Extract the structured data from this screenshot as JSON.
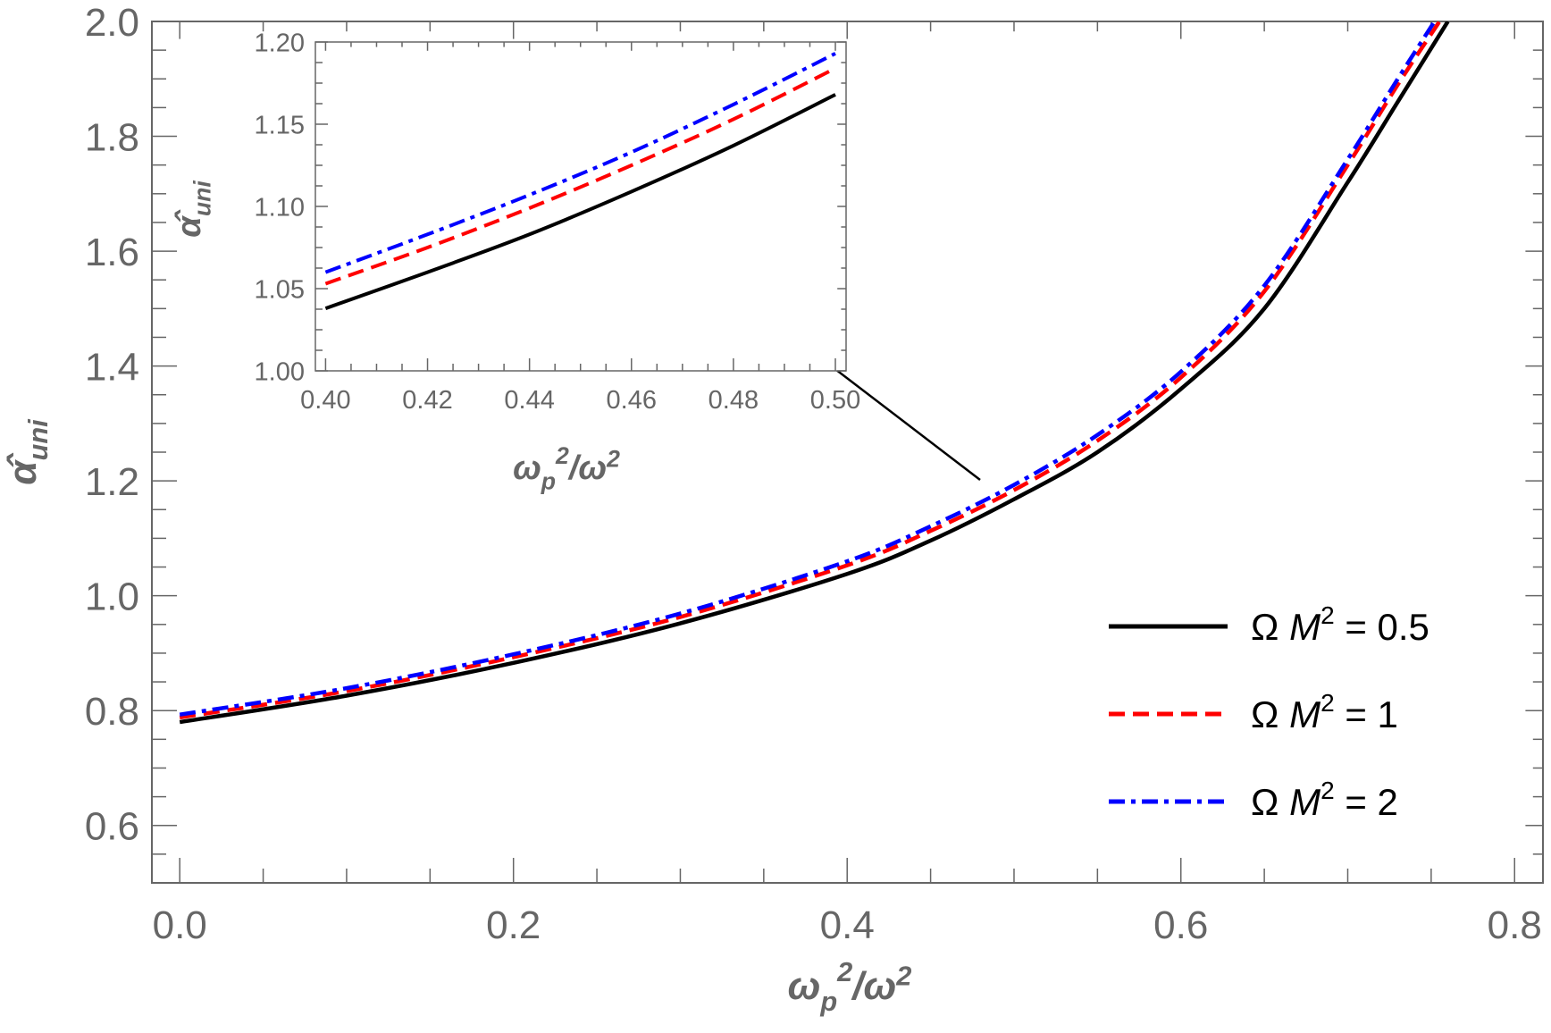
{
  "chart_data": [
    {
      "type": "line",
      "panel": "main",
      "xlabel_parts": [
        "ω",
        "p",
        "2",
        "/ω",
        "2"
      ],
      "ylabel_parts": [
        "α̂",
        "uni"
      ],
      "xlim": [
        -0.0167,
        0.817
      ],
      "ylim": [
        0.5,
        2.0
      ],
      "xticks": [
        "0.0",
        "0.2",
        "0.4",
        "0.6",
        "0.8"
      ],
      "yticks": [
        "0.6",
        "0.8",
        "1.0",
        "1.2",
        "1.4",
        "1.6",
        "1.8",
        "2.0"
      ],
      "grid": false,
      "legend_position": "bottom-right",
      "series": [
        {
          "name_parts": [
            "Ω ",
            "M",
            "2",
            " = 0.5"
          ],
          "color": "#000000",
          "style": "solid",
          "x": [
            0,
            0.1,
            0.2,
            0.3,
            0.4,
            0.45,
            0.5,
            0.55,
            0.6,
            0.65,
            0.7,
            0.73,
            0.76
          ],
          "y": [
            0.78,
            0.826,
            0.883,
            0.952,
            1.038,
            1.096,
            1.168,
            1.25,
            1.36,
            1.5,
            1.72,
            1.86,
            2.0
          ]
        },
        {
          "name_parts": [
            "Ω ",
            "M",
            "2",
            " = 1"
          ],
          "color": "#ff0000",
          "style": "dashed",
          "x": [
            0,
            0.1,
            0.2,
            0.3,
            0.4,
            0.45,
            0.5,
            0.55,
            0.6,
            0.65,
            0.7,
            0.73,
            0.755
          ],
          "y": [
            0.788,
            0.834,
            0.893,
            0.963,
            1.053,
            1.113,
            1.184,
            1.27,
            1.38,
            1.53,
            1.75,
            1.89,
            2.0
          ]
        },
        {
          "name_parts": [
            "Ω ",
            "M",
            "2",
            " = 2"
          ],
          "color": "#0000ff",
          "style": "dash-dot",
          "x": [
            0,
            0.1,
            0.2,
            0.3,
            0.4,
            0.45,
            0.5,
            0.55,
            0.6,
            0.65,
            0.7,
            0.73,
            0.752
          ],
          "y": [
            0.793,
            0.839,
            0.898,
            0.969,
            1.06,
            1.121,
            1.193,
            1.28,
            1.39,
            1.54,
            1.76,
            1.9,
            2.0
          ]
        }
      ]
    },
    {
      "type": "line",
      "panel": "inset",
      "xlabel_parts": [
        "ω",
        "p",
        "2",
        "/ω",
        "2"
      ],
      "ylabel_parts": [
        "α̂",
        "uni"
      ],
      "xlim": [
        0.398,
        0.5021
      ],
      "ylim": [
        1.0,
        1.2
      ],
      "xticks": [
        "0.40",
        "0.42",
        "0.44",
        "0.46",
        "0.48",
        "0.50"
      ],
      "yticks": [
        "1.00",
        "1.05",
        "1.10",
        "1.15",
        "1.20"
      ],
      "grid": false,
      "series": [
        {
          "color": "#000000",
          "style": "solid",
          "x": [
            0.4,
            0.42,
            0.44,
            0.46,
            0.48,
            0.5
          ],
          "y": [
            1.038,
            1.06,
            1.083,
            1.109,
            1.137,
            1.168
          ]
        },
        {
          "color": "#ff0000",
          "style": "dashed",
          "x": [
            0.4,
            0.42,
            0.44,
            0.46,
            0.48,
            0.5
          ],
          "y": [
            1.053,
            1.075,
            1.099,
            1.125,
            1.153,
            1.184
          ]
        },
        {
          "color": "#0000ff",
          "style": "dash-dot",
          "x": [
            0.4,
            0.42,
            0.44,
            0.46,
            0.48,
            0.5
          ],
          "y": [
            1.06,
            1.083,
            1.107,
            1.133,
            1.162,
            1.193
          ]
        }
      ]
    }
  ],
  "annotation": {
    "type": "arrow",
    "from": "main curves near x=0.48",
    "to": "inset"
  }
}
